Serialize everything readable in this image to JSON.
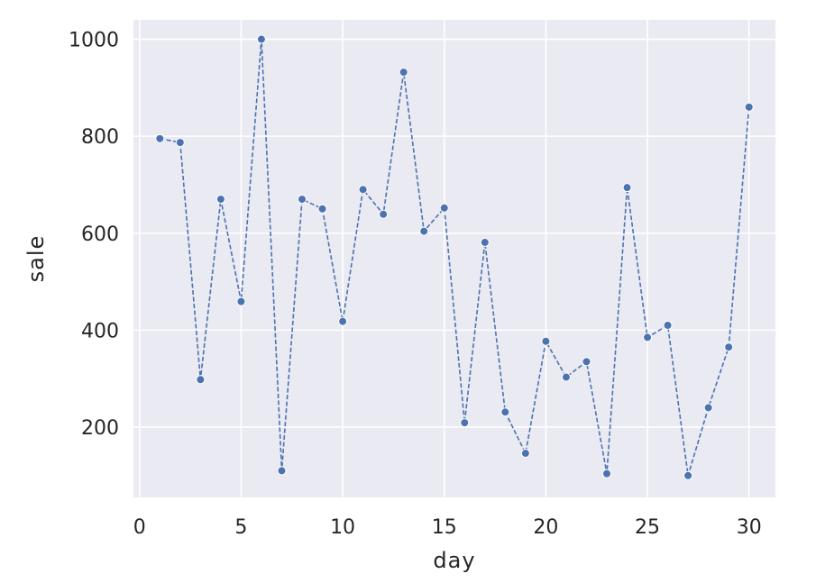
{
  "chart_data": {
    "type": "line",
    "title": "",
    "xlabel": "day",
    "ylabel": "sale",
    "xlim": [
      -0.3,
      31.3
    ],
    "ylim": [
      55,
      1040
    ],
    "xticks": [
      0,
      5,
      10,
      15,
      20,
      25,
      30
    ],
    "yticks": [
      200,
      400,
      600,
      800,
      1000
    ],
    "grid": true,
    "line_style": "dashed",
    "marker": "circle",
    "colors": {
      "background": "#eaeaf2",
      "grid": "#ffffff",
      "line": "#4c72b0",
      "marker_edge": "#ffffff"
    },
    "series": [
      {
        "x": [
          1,
          2,
          3,
          4,
          5,
          6,
          7,
          8,
          9,
          10,
          11,
          12,
          13,
          14,
          15,
          16,
          17,
          18,
          19,
          20,
          21,
          22,
          23,
          24,
          25,
          26,
          27,
          28,
          29,
          30
        ],
        "values": [
          795,
          787,
          298,
          670,
          459,
          1000,
          110,
          670,
          650,
          418,
          690,
          639,
          932,
          604,
          652,
          209,
          581,
          231,
          146,
          377,
          303,
          335,
          104,
          694,
          385,
          410,
          100,
          240,
          365,
          860
        ]
      }
    ]
  }
}
